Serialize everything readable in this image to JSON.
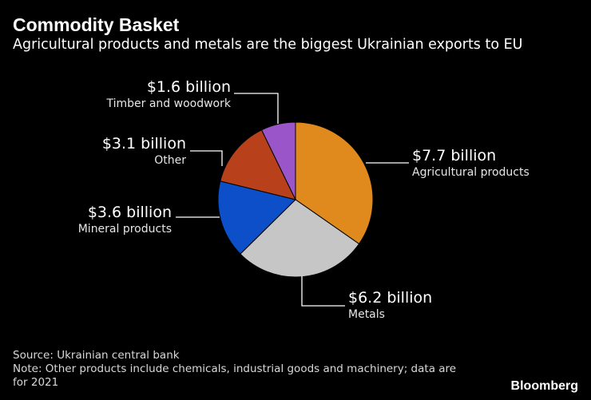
{
  "header": {
    "title": "Commodity Basket",
    "subtitle": "Agricultural products and metals are the biggest Ukrainian exports to EU"
  },
  "chart_data": {
    "type": "pie",
    "title": "Commodity Basket",
    "subtitle": "Agricultural products and metals are the biggest Ukrainian exports to EU",
    "unit": "billion USD",
    "slices": [
      {
        "name": "Agricultural products",
        "value": 7.7,
        "value_label": "$7.7 billion",
        "color": "#e08a1e"
      },
      {
        "name": "Metals",
        "value": 6.2,
        "value_label": "$6.2 billion",
        "color": "#c6c6c6"
      },
      {
        "name": "Mineral products",
        "value": 3.6,
        "value_label": "$3.6 billion",
        "color": "#0d4fc9"
      },
      {
        "name": "Other",
        "value": 3.1,
        "value_label": "$3.1 billion",
        "color": "#b8401a"
      },
      {
        "name": "Timber and woodwork",
        "value": 1.6,
        "value_label": "$1.6 billion",
        "color": "#9a55c8"
      }
    ]
  },
  "footer": {
    "source": "Source: Ukrainian central bank",
    "note_line1": "Note: Other products include chemicals, industrial goods and machinery; data are",
    "note_line2": "for 2021",
    "brand": "Bloomberg"
  }
}
